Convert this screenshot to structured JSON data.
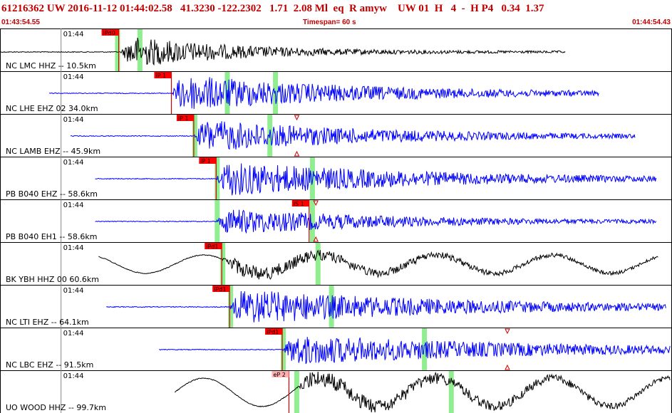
{
  "header": {
    "title": "61216362 UW 2016-11-12 01:44:02.58   41.3230 -122.2302   1.71  2.08 Ml  eq  R amyw    UW 01  H   4  -  H P4   0.34  1.37",
    "start_time": "01:43:54.55",
    "timespan": "Timespan=  60 s",
    "end_time": "01:44:54.43"
  },
  "colors": {
    "pick_red": "#ff0000",
    "pick_pink": "#ffb0b0",
    "highlight_green": "#90ee90",
    "trace_black": "#000000",
    "trace_blue": "#0000ff"
  },
  "chart_data": {
    "type": "line",
    "x_unit": "s",
    "x_range": [
      0,
      60
    ],
    "tick_label": "01:44",
    "channels": [
      {
        "label": "NC LMC HHZ -- 10.5km",
        "color": "#000000",
        "start": 0,
        "end": 50.5,
        "onset": 10.8,
        "pick": {
          "label": "iPd0",
          "t": 10.6,
          "style": "red"
        },
        "greens": [
          10.4,
          12.4
        ],
        "decay": 10,
        "amp": 0.75,
        "lowfreq": 0,
        "markers": []
      },
      {
        "label": "NC LHE EHZ 02 34.0km",
        "color": "#0000ff",
        "start": 4.4,
        "end": 53.5,
        "onset": 15.3,
        "pick": {
          "label": "iP 1",
          "t": 15.3,
          "style": "red"
        },
        "greens": [
          20.2,
          24.5
        ],
        "decay": 16,
        "amp": 0.85,
        "lowfreq": 0,
        "markers": []
      },
      {
        "label": "NC LAMB EHZ -- 45.9km",
        "color": "#0000ff",
        "start": 6.3,
        "end": 56.7,
        "onset": 17.3,
        "pick": {
          "label": "iP 1",
          "t": 17.3,
          "style": "red"
        },
        "greens": [
          17.3,
          24.0
        ],
        "decay": 16,
        "amp": 0.75,
        "lowfreq": 0,
        "markers": [
          26.5
        ]
      },
      {
        "label": "PB B040 EHZ -- 58.6km",
        "color": "#0000ff",
        "start": 8.5,
        "end": 58.6,
        "onset": 19.3,
        "pick": {
          "label": "iP 1",
          "t": 19.3,
          "style": "red"
        },
        "greens": [
          19.3,
          27.8
        ],
        "decay": 18,
        "amp": 0.8,
        "lowfreq": 0,
        "markers": []
      },
      {
        "label": "PB B040 EH1 -- 58.6km",
        "color": "#0000ff",
        "start": 8.5,
        "end": 58.6,
        "onset": 19.3,
        "pick": {
          "label": "iS 1",
          "t": 27.6,
          "style": "red"
        },
        "greens": [
          19.3,
          27.8
        ],
        "decay": 16,
        "amp": 0.6,
        "lowfreq": 0,
        "markers": [
          28.2
        ]
      },
      {
        "label": "BK YBH HHZ 00 60.6km",
        "color": "#000000",
        "start": 8.8,
        "end": 58.8,
        "onset": 19.8,
        "pick": {
          "label": "iPd1",
          "t": 19.8,
          "style": "red"
        },
        "greens": [
          19.8,
          28.3
        ],
        "decay": 20,
        "amp": 0.35,
        "lowfreq": 0.55,
        "markers": []
      },
      {
        "label": "NC LTI EHZ -- 64.1km",
        "color": "#0000ff",
        "start": 9.5,
        "end": 59.5,
        "onset": 20.5,
        "pick": {
          "label": "iPd1",
          "t": 20.5,
          "style": "red"
        },
        "greens": [
          20.5,
          29.5
        ],
        "decay": 20,
        "amp": 0.8,
        "lowfreq": 0,
        "markers": []
      },
      {
        "label": "NC LBC EHZ -- 91.5km",
        "color": "#0000ff",
        "start": 14.2,
        "end": 64.3,
        "onset": 25.2,
        "pick": {
          "label": "iPd1",
          "t": 25.2,
          "style": "red"
        },
        "greens": [
          25.2,
          37.8
        ],
        "decay": 22,
        "amp": 0.7,
        "lowfreq": 0,
        "markers": [
          45.3
        ]
      },
      {
        "label": "UO WOOD HHZ -- 99.7km",
        "color": "#000000",
        "start": 15.6,
        "end": 65.2,
        "onset": 26.4,
        "pick": {
          "label": "eP 2",
          "t": 25.8,
          "style": "pink"
        },
        "greens": [
          26.4,
          40.2
        ],
        "decay": 25,
        "amp": 0.4,
        "lowfreq": 0.85,
        "markers": []
      }
    ]
  }
}
